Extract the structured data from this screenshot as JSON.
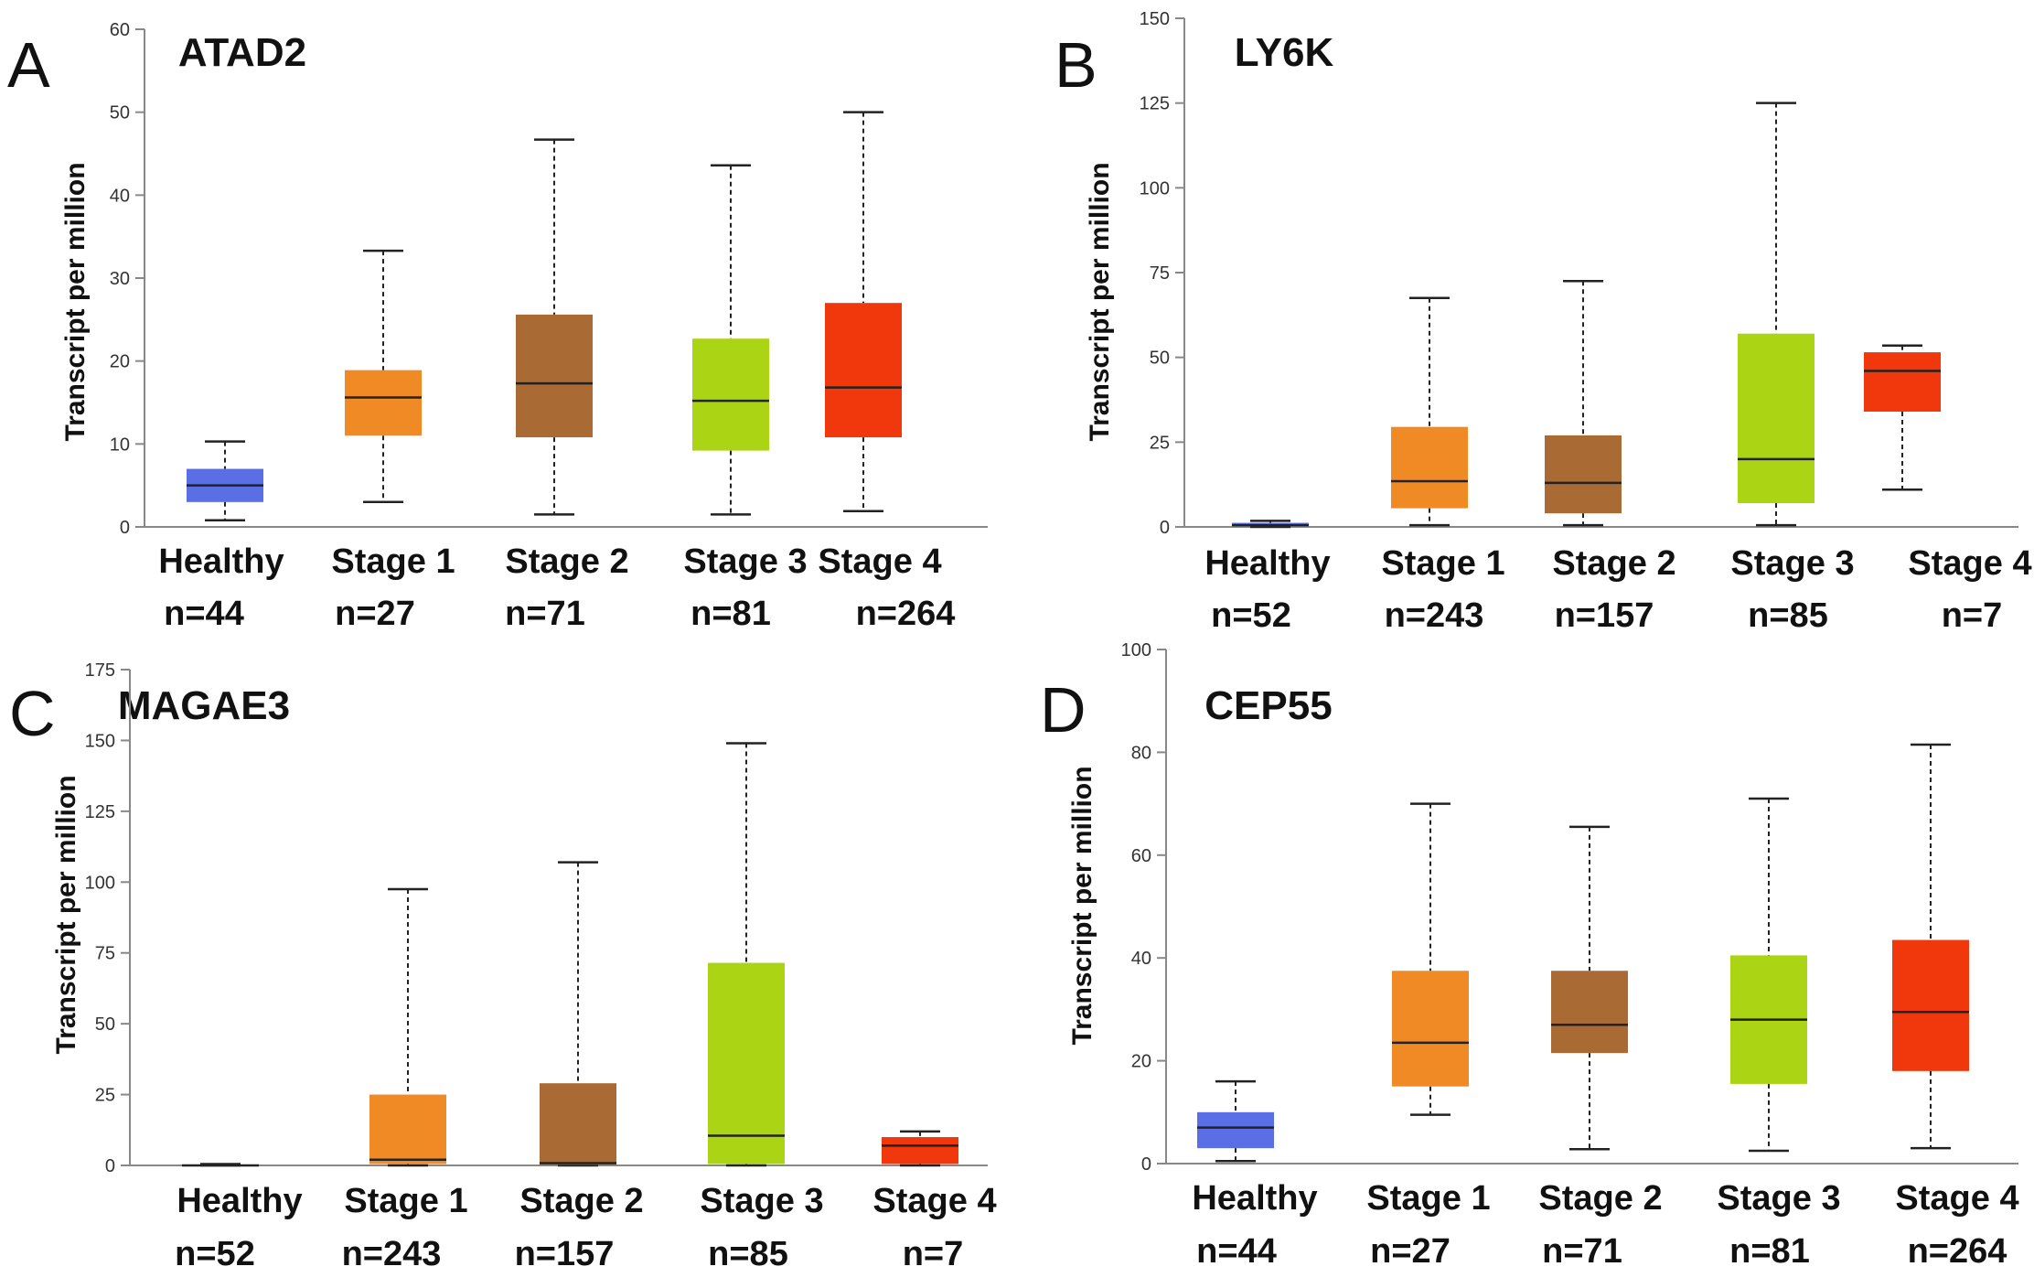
{
  "chart_data": [
    {
      "type": "box",
      "panel": "A",
      "title": "ATAD2",
      "ylabel": "Transcript per million",
      "ylim": [
        0,
        60
      ],
      "yticks": [
        "0",
        "10",
        "20",
        "30",
        "40",
        "50",
        "60"
      ],
      "categories": [
        {
          "name": "Healthy",
          "n": "n=44",
          "color": "#5a6ee6",
          "min": 0.8,
          "q1": 3.0,
          "median": 5.0,
          "q3": 7.0,
          "max": 10.3
        },
        {
          "name": "Stage 1",
          "n": "n=27",
          "color": "#f08a24",
          "min": 3.0,
          "q1": 11.0,
          "median": 15.6,
          "q3": 18.9,
          "max": 33.3
        },
        {
          "name": "Stage 2",
          "n": "n=71",
          "color": "#a96a34",
          "min": 1.5,
          "q1": 10.8,
          "median": 17.3,
          "q3": 25.6,
          "max": 46.7
        },
        {
          "name": "Stage 3",
          "n": "n=81",
          "color": "#aad414",
          "min": 1.5,
          "q1": 9.2,
          "median": 15.2,
          "q3": 22.7,
          "max": 43.6
        },
        {
          "name": "Stage 4",
          "n": "n=264",
          "color": "#f0380c",
          "min": 1.9,
          "q1": 10.8,
          "median": 16.8,
          "q3": 27.0,
          "max": 50.0
        }
      ]
    },
    {
      "type": "box",
      "panel": "B",
      "title": "LY6K",
      "ylabel": "Transcript per million",
      "ylim": [
        0,
        150
      ],
      "yticks": [
        "0",
        "25",
        "50",
        "75",
        "100",
        "125",
        "150"
      ],
      "categories": [
        {
          "name": "Healthy",
          "n": "n=52",
          "color": "#5a6ee6",
          "min": 0.0,
          "q1": 0.2,
          "median": 0.5,
          "q3": 1.2,
          "max": 1.8
        },
        {
          "name": "Stage 1",
          "n": "n=243",
          "color": "#f08a24",
          "min": 0.5,
          "q1": 5.5,
          "median": 13.5,
          "q3": 29.5,
          "max": 67.5
        },
        {
          "name": "Stage 2",
          "n": "n=157",
          "color": "#a96a34",
          "min": 0.5,
          "q1": 4.0,
          "median": 13.0,
          "q3": 27.0,
          "max": 72.5
        },
        {
          "name": "Stage 3",
          "n": "n=85",
          "color": "#aad414",
          "min": 0.5,
          "q1": 7.0,
          "median": 20.0,
          "q3": 57.0,
          "max": 125.0
        },
        {
          "name": "Stage 4",
          "n": "n=7",
          "color": "#f0380c",
          "min": 11.0,
          "q1": 34.0,
          "median": 46.0,
          "q3": 51.5,
          "max": 53.5
        }
      ]
    },
    {
      "type": "box",
      "panel": "C",
      "title": "MAGAE3",
      "ylabel": "Transcript per million",
      "ylim": [
        0,
        175
      ],
      "yticks": [
        "0",
        "25",
        "50",
        "75",
        "100",
        "125",
        "150",
        "175"
      ],
      "categories": [
        {
          "name": "Healthy",
          "n": "n=52",
          "color": "#5a6ee6",
          "min": 0.0,
          "q1": 0.0,
          "median": 0.0,
          "q3": 0.3,
          "max": 0.5
        },
        {
          "name": "Stage 1",
          "n": "n=243",
          "color": "#f08a24",
          "min": 0.0,
          "q1": 0.5,
          "median": 2.0,
          "q3": 25.0,
          "max": 97.5
        },
        {
          "name": "Stage 2",
          "n": "n=157",
          "color": "#a96a34",
          "min": 0.0,
          "q1": 0.2,
          "median": 0.8,
          "q3": 29.0,
          "max": 107.0
        },
        {
          "name": "Stage 3",
          "n": "n=85",
          "color": "#aad414",
          "min": 0.0,
          "q1": 0.5,
          "median": 10.5,
          "q3": 71.5,
          "max": 149.0
        },
        {
          "name": "Stage 4",
          "n": "n=7",
          "color": "#f0380c",
          "min": 0.0,
          "q1": 0.5,
          "median": 7.0,
          "q3": 10.0,
          "max": 12.0
        }
      ]
    },
    {
      "type": "box",
      "panel": "D",
      "title": "CEP55",
      "ylabel": "Transcript per million",
      "ylim": [
        0,
        100
      ],
      "yticks": [
        "0",
        "20",
        "40",
        "60",
        "80",
        "100"
      ],
      "categories": [
        {
          "name": "Healthy",
          "n": "n=44",
          "color": "#5a6ee6",
          "min": 0.5,
          "q1": 3.0,
          "median": 7.0,
          "q3": 10.0,
          "max": 16.0
        },
        {
          "name": "Stage 1",
          "n": "n=27",
          "color": "#f08a24",
          "min": 9.5,
          "q1": 15.0,
          "median": 23.5,
          "q3": 37.5,
          "max": 70.0
        },
        {
          "name": "Stage 2",
          "n": "n=71",
          "color": "#a96a34",
          "min": 2.8,
          "q1": 21.5,
          "median": 27.0,
          "q3": 37.5,
          "max": 65.5
        },
        {
          "name": "Stage 3",
          "n": "n=81",
          "color": "#aad414",
          "min": 2.5,
          "q1": 15.5,
          "median": 28.0,
          "q3": 40.5,
          "max": 71.0
        },
        {
          "name": "Stage 4",
          "n": "n=264",
          "color": "#f0380c",
          "min": 3.0,
          "q1": 18.0,
          "median": 29.5,
          "q3": 43.5,
          "max": 81.5
        }
      ]
    }
  ]
}
